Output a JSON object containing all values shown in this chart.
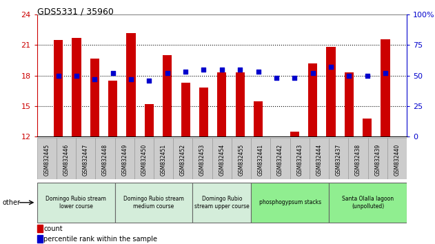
{
  "title": "GDS5331 / 35960",
  "samples": [
    "GSM832445",
    "GSM832446",
    "GSM832447",
    "GSM832448",
    "GSM832449",
    "GSM832450",
    "GSM832451",
    "GSM832452",
    "GSM832453",
    "GSM832454",
    "GSM832455",
    "GSM832441",
    "GSM832442",
    "GSM832443",
    "GSM832444",
    "GSM832437",
    "GSM832438",
    "GSM832439",
    "GSM832440"
  ],
  "counts": [
    21.5,
    21.7,
    19.7,
    17.5,
    22.2,
    15.2,
    20.0,
    17.3,
    16.8,
    18.3,
    18.3,
    15.5,
    11.2,
    12.5,
    19.2,
    20.8,
    18.3,
    13.8,
    21.6
  ],
  "percentiles": [
    50,
    50,
    47,
    52,
    47,
    46,
    52,
    53,
    55,
    55,
    55,
    53,
    48,
    48,
    52,
    57,
    50,
    50,
    52
  ],
  "ylim_left": [
    12,
    24
  ],
  "ylim_right": [
    0,
    100
  ],
  "yticks_left": [
    12,
    15,
    18,
    21,
    24
  ],
  "yticks_right": [
    0,
    25,
    50,
    75,
    100
  ],
  "ytick_labels_right": [
    "0",
    "25",
    "50",
    "75",
    "100%"
  ],
  "bar_color": "#cc0000",
  "dot_color": "#0000cc",
  "bar_width": 0.5,
  "groups": [
    {
      "label": "Domingo Rubio stream\nlower course",
      "start": 0,
      "end": 3,
      "color": "#d4edda"
    },
    {
      "label": "Domingo Rubio stream\nmedium course",
      "start": 4,
      "end": 7,
      "color": "#d4edda"
    },
    {
      "label": "Domingo Rubio\nstream upper course",
      "start": 8,
      "end": 10,
      "color": "#d4edda"
    },
    {
      "label": "phosphogypsum stacks",
      "start": 11,
      "end": 14,
      "color": "#90ee90"
    },
    {
      "label": "Santa Olalla lagoon\n(unpolluted)",
      "start": 15,
      "end": 18,
      "color": "#90ee90"
    }
  ],
  "other_label": "other",
  "legend_count_label": "count",
  "legend_pct_label": "percentile rank within the sample",
  "axis_color_left": "#cc0000",
  "axis_color_right": "#0000cc",
  "tick_label_bg": "#cccccc",
  "group_border_color": "#666666",
  "group_light_color": "#d4edda",
  "group_dark_color": "#7ec87e"
}
